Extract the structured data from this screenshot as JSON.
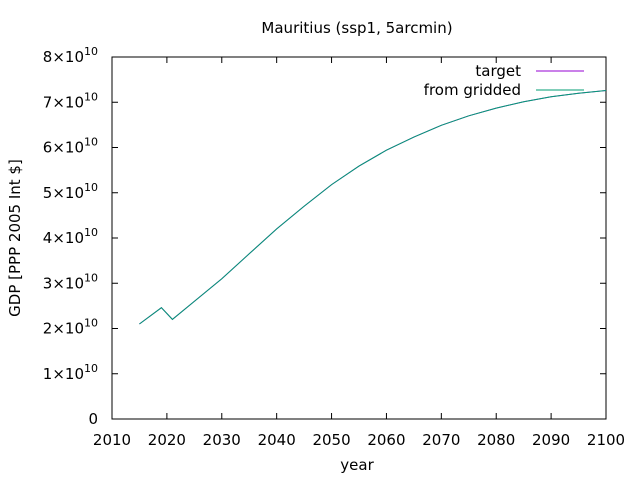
{
  "chart_data": {
    "type": "line",
    "title": "Mauritius (ssp1, 5arcmin)",
    "xlabel": "year",
    "ylabel": "GDP [PPP 2005 Int $]",
    "xlim": [
      2010,
      2100
    ],
    "ylim": [
      0,
      80000000000
    ],
    "x_ticks": [
      2010,
      2020,
      2030,
      2040,
      2050,
      2060,
      2070,
      2080,
      2090,
      2100
    ],
    "y_ticks": [
      {
        "value": 0,
        "mantissa": "0",
        "exp": ""
      },
      {
        "value": 10000000000,
        "mantissa": "1×10",
        "exp": "10"
      },
      {
        "value": 20000000000,
        "mantissa": "2×10",
        "exp": "10"
      },
      {
        "value": 30000000000,
        "mantissa": "3×10",
        "exp": "10"
      },
      {
        "value": 40000000000,
        "mantissa": "4×10",
        "exp": "10"
      },
      {
        "value": 50000000000,
        "mantissa": "5×10",
        "exp": "10"
      },
      {
        "value": 60000000000,
        "mantissa": "6×10",
        "exp": "10"
      },
      {
        "value": 70000000000,
        "mantissa": "7×10",
        "exp": "10"
      },
      {
        "value": 80000000000,
        "mantissa": "8×10",
        "exp": "10"
      }
    ],
    "grid": false,
    "legend_position": "top-right",
    "series": [
      {
        "name": "target",
        "color": "#9400d3",
        "x": [
          2015,
          2019,
          2021,
          2025,
          2030,
          2035,
          2040,
          2045,
          2050,
          2055,
          2060,
          2065,
          2070,
          2075,
          2080,
          2085,
          2090,
          2095,
          2100
        ],
        "y": [
          21000000000,
          24600000000,
          22000000000,
          26000000000,
          31000000000,
          36500000000,
          42000000000,
          47000000000,
          51800000000,
          55900000000,
          59400000000,
          62300000000,
          64900000000,
          67000000000,
          68700000000,
          70100000000,
          71200000000,
          72000000000,
          72600000000
        ]
      },
      {
        "name": "from gridded",
        "color": "#009e73",
        "x": [
          2015,
          2019,
          2021,
          2025,
          2030,
          2035,
          2040,
          2045,
          2050,
          2055,
          2060,
          2065,
          2070,
          2075,
          2080,
          2085,
          2090,
          2095,
          2100
        ],
        "y": [
          21000000000,
          24600000000,
          22000000000,
          26000000000,
          31000000000,
          36500000000,
          42000000000,
          47000000000,
          51800000000,
          55900000000,
          59400000000,
          62300000000,
          64900000000,
          67000000000,
          68700000000,
          70100000000,
          71200000000,
          72000000000,
          72600000000
        ]
      }
    ]
  }
}
